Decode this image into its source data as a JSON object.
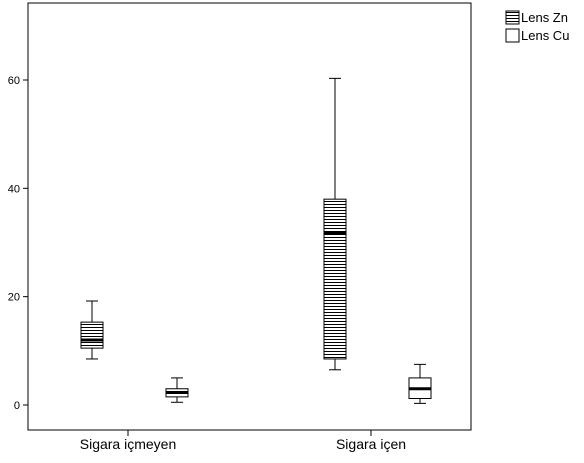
{
  "chart_data": {
    "type": "boxplot",
    "title": "",
    "xlabel": "",
    "ylabel": "",
    "ylim": [
      -5,
      75
    ],
    "yticks": [
      0,
      20,
      40,
      60
    ],
    "categories": [
      "Sigara içmeyen",
      "Sigara içen"
    ],
    "legend_position": "top-right, outside plot",
    "grid": false,
    "series": [
      {
        "name": "Lens Zn",
        "fill": "horizontal-stripes",
        "boxes": [
          {
            "category": "Sigara içmeyen",
            "min": 8.5,
            "q1": 10.5,
            "median": 12,
            "q3": 15.3,
            "max": 19.2
          },
          {
            "category": "Sigara içen",
            "min": 6.5,
            "q1": 8.5,
            "median": 31.8,
            "q3": 38,
            "max": 60.3
          }
        ]
      },
      {
        "name": "Lens Cu",
        "fill": "none",
        "boxes": [
          {
            "category": "Sigara içmeyen",
            "min": 0.5,
            "q1": 1.5,
            "median": 2.3,
            "q3": 3,
            "max": 5
          },
          {
            "category": "Sigara içen",
            "min": 0.3,
            "q1": 1.2,
            "median": 3,
            "q3": 5,
            "max": 7.5
          }
        ]
      }
    ]
  }
}
